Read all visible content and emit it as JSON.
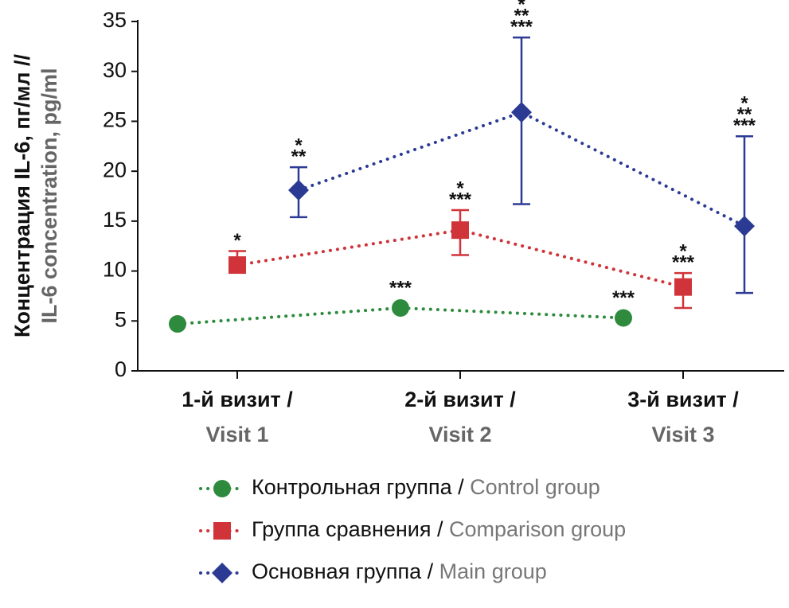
{
  "chart_data": {
    "type": "line",
    "y_label": [
      "Концентрация IL-6, пг/мл //",
      "IL-6 concentration, pg/ml"
    ],
    "categories": [
      [
        "1-й визит /",
        "Visit 1"
      ],
      [
        "2-й визит /",
        "Visit 2"
      ],
      [
        "3-й визит /",
        "Visit 3"
      ]
    ],
    "ylim": [
      0,
      35
    ],
    "yticks": [
      0,
      5,
      10,
      15,
      20,
      25,
      30,
      35
    ],
    "series": [
      {
        "name": [
          "Контрольная группа /",
          "Control group"
        ],
        "color": "#2e8b3e",
        "marker": "circle",
        "values": [
          4.7,
          6.3,
          5.3
        ],
        "error_low": [
          null,
          null,
          null
        ],
        "error_high": [
          null,
          null,
          null
        ],
        "annotations": [
          null,
          [
            "***"
          ],
          [
            "***"
          ]
        ]
      },
      {
        "name": [
          "Группа сравнения /",
          "Comparison group"
        ],
        "color": "#d0343a",
        "marker": "square",
        "values": [
          10.6,
          14.1,
          8.4
        ],
        "error_low": [
          null,
          11.6,
          6.3
        ],
        "error_high": [
          12.0,
          16.1,
          9.8
        ],
        "annotations": [
          [
            "*"
          ],
          [
            "*",
            "***"
          ],
          [
            "*",
            "***"
          ]
        ]
      },
      {
        "name": [
          "Основная группа /",
          "Main group"
        ],
        "color": "#2b3b94",
        "marker": "diamond",
        "values": [
          18.1,
          25.9,
          14.5
        ],
        "error_low": [
          15.4,
          16.7,
          7.8
        ],
        "error_high": [
          20.4,
          33.4,
          23.5
        ],
        "annotations": [
          [
            "*",
            "**"
          ],
          [
            "*",
            "**",
            "***"
          ],
          [
            "*",
            "**",
            "***"
          ]
        ]
      }
    ]
  }
}
